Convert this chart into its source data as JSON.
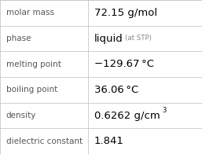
{
  "rows": [
    {
      "label": "molar mass",
      "value": "72.15 g/mol",
      "value_suffix": null,
      "value_sup": null
    },
    {
      "label": "phase",
      "value": "liquid",
      "value_suffix": " (at STP)",
      "value_sup": null
    },
    {
      "label": "melting point",
      "value": "−129.67 °C",
      "value_suffix": null,
      "value_sup": null
    },
    {
      "label": "boiling point",
      "value": "36.06 °C",
      "value_suffix": null,
      "value_sup": null
    },
    {
      "label": "density",
      "value": "0.6262 g/cm",
      "value_suffix": null,
      "value_sup": "3"
    },
    {
      "label": "dielectric constant",
      "value": "1.841",
      "value_suffix": null,
      "value_sup": null
    }
  ],
  "bg_color": "#ffffff",
  "grid_color": "#c8c8c8",
  "label_color": "#555555",
  "value_color": "#000000",
  "suffix_color": "#888888",
  "label_fontsize": 7.5,
  "value_fontsize": 9.5,
  "suffix_fontsize": 6.2,
  "sup_fontsize": 6.0,
  "col_split": 0.435,
  "figwidth": 2.57,
  "figheight": 1.96,
  "dpi": 100
}
